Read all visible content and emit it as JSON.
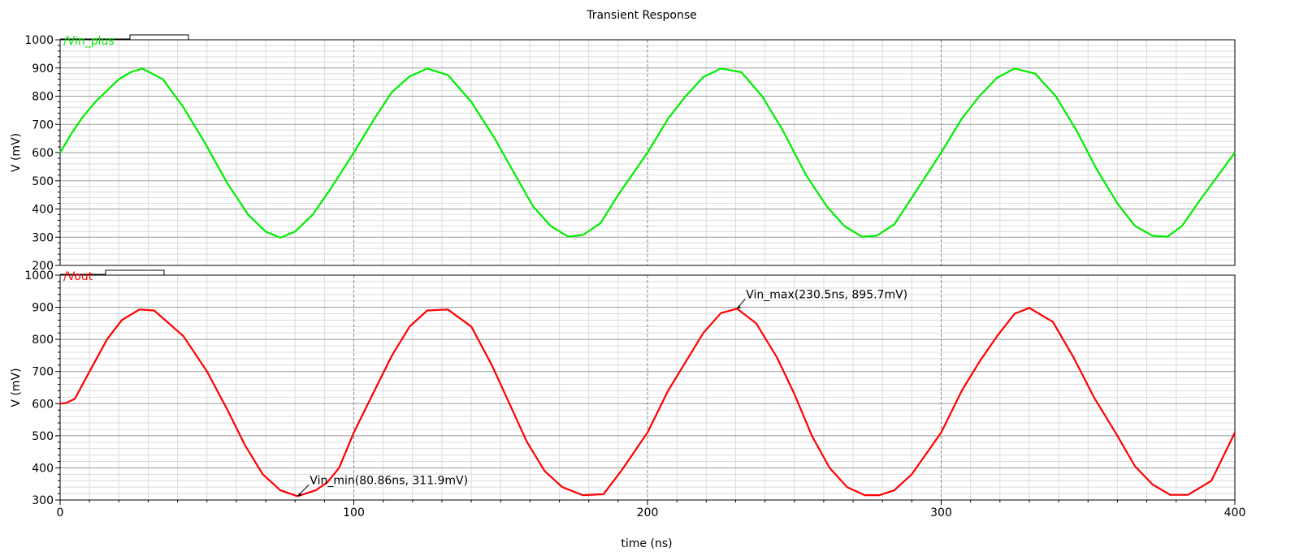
{
  "chart_data": [
    {
      "type": "line",
      "title": "Transient Response",
      "ylabel": "V (mV)",
      "ylim": [
        200,
        1000
      ],
      "xlim": [
        0,
        400
      ],
      "grid": true,
      "series": [
        {
          "name": "/Vin_plus",
          "color": "#00ee00",
          "x": [
            0,
            4,
            8,
            12,
            16,
            20,
            24,
            28,
            35,
            42,
            49,
            57,
            64,
            70,
            75,
            80,
            86,
            92,
            100,
            107,
            113,
            119,
            125,
            132,
            140,
            148,
            155,
            161,
            167,
            173,
            178,
            184,
            190,
            200,
            207,
            213,
            219,
            225,
            232,
            239,
            246,
            254,
            261,
            267,
            273,
            278,
            284,
            290,
            300,
            307,
            313,
            319,
            325,
            332,
            339,
            346,
            353,
            360,
            366,
            372,
            377,
            382,
            388,
            400
          ],
          "values": [
            600,
            670,
            730,
            780,
            820,
            860,
            885,
            898,
            860,
            760,
            640,
            490,
            380,
            320,
            298,
            320,
            380,
            470,
            600,
            720,
            815,
            870,
            898,
            875,
            780,
            650,
            520,
            410,
            340,
            302,
            308,
            350,
            450,
            600,
            720,
            800,
            868,
            898,
            885,
            800,
            680,
            520,
            410,
            340,
            302,
            305,
            345,
            440,
            600,
            720,
            800,
            865,
            898,
            880,
            800,
            680,
            540,
            420,
            340,
            305,
            302,
            340,
            430,
            600
          ]
        },
        {
          "name": "/Vout",
          "color": "#ff0000",
          "x": [
            0,
            2,
            5,
            10,
            16,
            21,
            27,
            32,
            42,
            50,
            57,
            63,
            69,
            75,
            80.86,
            87,
            91,
            95,
            100,
            107,
            113,
            119,
            125,
            132,
            140,
            147,
            153,
            159,
            165,
            171,
            178,
            185,
            191,
            200,
            207,
            213,
            219,
            225,
            230.5,
            237,
            244,
            250,
            256,
            262,
            268,
            274,
            279,
            284,
            290,
            300,
            307,
            313,
            319,
            325,
            330,
            338,
            345,
            352,
            360,
            366,
            372,
            378,
            384,
            392,
            400
          ],
          "values": [
            600,
            602,
            615,
            700,
            800,
            860,
            893,
            890,
            810,
            700,
            580,
            470,
            380,
            330,
            311.9,
            330,
            355,
            400,
            510,
            640,
            750,
            840,
            890,
            893,
            840,
            720,
            600,
            480,
            390,
            340,
            315,
            318,
            390,
            510,
            640,
            730,
            820,
            882,
            895.7,
            850,
            745,
            630,
            500,
            400,
            340,
            315,
            315,
            330,
            380,
            510,
            640,
            730,
            810,
            880,
            898,
            855,
            745,
            620,
            500,
            405,
            348,
            316,
            316,
            360,
            510
          ]
        }
      ]
    }
  ],
  "panels": {
    "top": {
      "label": "/Vin_plus",
      "ylabel": "V (mV)",
      "ylim": [
        200,
        1000
      ],
      "yticks": [
        "200",
        "300",
        "400",
        "500",
        "600",
        "700",
        "800",
        "900",
        "1000"
      ],
      "ytick_values": [
        200,
        300,
        400,
        500,
        600,
        700,
        800,
        900,
        1000
      ],
      "color": "#00ee00"
    },
    "bottom": {
      "label": "/Vout",
      "ylabel": "V (mV)",
      "ylim": [
        300,
        1000
      ],
      "yticks": [
        "300",
        "400",
        "500",
        "600",
        "700",
        "800",
        "900",
        "1000"
      ],
      "ytick_values": [
        300,
        400,
        500,
        600,
        700,
        800,
        900,
        1000
      ],
      "color": "#ff0000"
    }
  },
  "xaxis": {
    "label": "time (ns)",
    "xlim": [
      0,
      400
    ],
    "ticks": [
      "0",
      "100",
      "200",
      "300",
      "400"
    ],
    "tick_values": [
      0,
      100,
      200,
      300,
      400
    ]
  },
  "markers": [
    {
      "label": "Vin_min(80.86ns, 311.9mV)",
      "x": 80.86,
      "y": 311.9,
      "panel": "bottom"
    },
    {
      "label": "Vin_max(230.5ns, 895.7mV)",
      "x": 230.5,
      "y": 895.7,
      "panel": "bottom"
    }
  ]
}
